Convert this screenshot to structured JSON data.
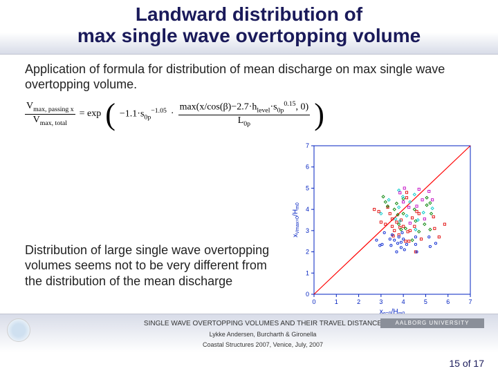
{
  "title_line1": "Landward distribution of",
  "title_line2": "max single wave overtopping volume",
  "subtitle": "Application of formula for distribution of mean discharge on max single wave overtopping volume.",
  "formula": {
    "lhs_num": "V",
    "lhs_num_sub": "max, passing x",
    "lhs_den": "V",
    "lhs_den_sub": "max, total",
    "eq": "= exp",
    "t1": "−1.1·s",
    "t1_sub": "0p",
    "t1_sup": "−1.05",
    "t2a": "max(x/cos(β)−2.7·h",
    "t2a_sub": "level",
    "t2b": "·s",
    "t2b_sub": "0p",
    "t2b_sup": "0.15",
    "t2c": ", 0)",
    "t3": "L",
    "t3_sub": "0p",
    "dot": "·"
  },
  "body_text": "Distribution of large single wave overtopping volumes seems not to be very different from the distribution of the mean discharge",
  "chart": {
    "type": "scatter",
    "xlim": [
      0,
      7
    ],
    "ylim": [
      0,
      7
    ],
    "ticks": [
      0,
      1,
      2,
      3,
      4,
      5,
      6,
      7
    ],
    "xlabel": "x",
    "xlabel_sub": "q=0",
    "xlabel_suffix": "/H",
    "xlabel_sub2": "m0",
    "ylabel": "x",
    "ylabel_sub": "Vmax=0",
    "ylabel_suffix": "/H",
    "ylabel_sub2": "m0",
    "line": {
      "x1": 0,
      "y1": 0,
      "x2": 7,
      "y2": 7,
      "color": "#ff0000",
      "width": 1.2
    },
    "axis_color": "#0020c0",
    "tick_color": "#0020c0",
    "label_color": "#0020c0",
    "background_color": "#ffffff",
    "marker_size": 3.2,
    "series": [
      {
        "color": "#e00000",
        "marker": "square",
        "points": [
          [
            2.7,
            4.0
          ],
          [
            2.9,
            3.9
          ],
          [
            3.0,
            3.4
          ],
          [
            3.2,
            3.3
          ],
          [
            3.3,
            4.1
          ],
          [
            3.4,
            3.8
          ],
          [
            3.5,
            3.2
          ],
          [
            3.5,
            3.55
          ],
          [
            3.55,
            2.75
          ],
          [
            3.6,
            3.0
          ],
          [
            3.7,
            3.4
          ],
          [
            3.8,
            2.8
          ],
          [
            3.85,
            3.15
          ],
          [
            3.9,
            3.5
          ],
          [
            4.0,
            3.2
          ],
          [
            4.1,
            2.5
          ],
          [
            4.15,
            4.55
          ],
          [
            4.15,
            4.8
          ],
          [
            4.2,
            2.95
          ],
          [
            4.25,
            2.5
          ],
          [
            4.3,
            3.0
          ],
          [
            4.4,
            3.6
          ],
          [
            4.5,
            3.2
          ],
          [
            4.55,
            2.0
          ],
          [
            4.6,
            3.9
          ],
          [
            4.7,
            3.8
          ],
          [
            4.8,
            2.6
          ],
          [
            5.35,
            3.65
          ],
          [
            5.4,
            3.1
          ],
          [
            5.6,
            2.7
          ],
          [
            5.85,
            3.3
          ]
        ]
      },
      {
        "color": "#008000",
        "marker": "diamond",
        "points": [
          [
            3.1,
            4.6
          ],
          [
            3.2,
            4.35
          ],
          [
            3.3,
            4.15
          ],
          [
            3.6,
            4.0
          ],
          [
            3.7,
            4.28
          ],
          [
            3.75,
            3.75
          ],
          [
            3.8,
            3.3
          ],
          [
            3.9,
            3.05
          ],
          [
            4.0,
            3.8
          ],
          [
            4.0,
            4.5
          ],
          [
            4.1,
            3.1
          ],
          [
            4.4,
            2.55
          ],
          [
            4.5,
            4.0
          ],
          [
            4.55,
            3.45
          ],
          [
            4.7,
            2.95
          ],
          [
            5.05,
            4.55
          ],
          [
            5.05,
            4.2
          ],
          [
            5.2,
            4.3
          ],
          [
            5.2,
            3.05
          ],
          [
            5.25,
            3.8
          ],
          [
            4.95,
            3.3
          ]
        ]
      },
      {
        "color": "#0020d0",
        "marker": "circle",
        "points": [
          [
            2.8,
            2.55
          ],
          [
            2.95,
            2.3
          ],
          [
            3.05,
            2.35
          ],
          [
            3.15,
            2.9
          ],
          [
            3.4,
            2.6
          ],
          [
            3.45,
            2.3
          ],
          [
            3.5,
            2.8
          ],
          [
            3.6,
            2.55
          ],
          [
            3.7,
            2.0
          ],
          [
            3.75,
            2.4
          ],
          [
            3.8,
            2.7
          ],
          [
            3.9,
            2.2
          ],
          [
            3.9,
            2.45
          ],
          [
            3.95,
            2.9
          ],
          [
            4.0,
            2.6
          ],
          [
            4.05,
            2.1
          ],
          [
            4.15,
            2.35
          ],
          [
            4.55,
            2.35
          ],
          [
            4.55,
            2.7
          ],
          [
            4.6,
            2.0
          ],
          [
            5.15,
            2.7
          ],
          [
            5.2,
            2.25
          ],
          [
            5.45,
            2.4
          ]
        ]
      },
      {
        "color": "#00c8c8",
        "marker": "diamond",
        "points": [
          [
            3.0,
            3.8
          ],
          [
            3.35,
            4.45
          ],
          [
            3.65,
            3.55
          ],
          [
            3.8,
            4.1
          ],
          [
            3.8,
            4.9
          ],
          [
            3.85,
            3.45
          ],
          [
            3.98,
            4.6
          ],
          [
            4.15,
            3.7
          ],
          [
            4.3,
            4.35
          ],
          [
            4.5,
            4.7
          ],
          [
            4.55,
            3.05
          ],
          [
            4.65,
            3.5
          ],
          [
            4.9,
            3.85
          ],
          [
            5.3,
            4.05
          ]
        ]
      },
      {
        "color": "#c000c0",
        "marker": "square",
        "points": [
          [
            3.85,
            4.78
          ],
          [
            4.0,
            4.35
          ],
          [
            4.05,
            5.0
          ],
          [
            4.25,
            4.1
          ],
          [
            4.3,
            3.35
          ],
          [
            4.6,
            4.15
          ],
          [
            4.7,
            4.95
          ],
          [
            4.85,
            4.45
          ],
          [
            4.95,
            3.55
          ],
          [
            5.15,
            4.85
          ],
          [
            5.3,
            4.45
          ]
        ]
      }
    ]
  },
  "footer": {
    "line1": "SINGLE WAVE OVERTOPPING VOLUMES AND THEIR TRAVEL DISTANCE",
    "line2": "Lykke Andersen, Burcharth & Gironella",
    "line3": "Coastal Structures 2007, Venice, July, 2007",
    "univ": "AALBORG UNIVERSITY"
  },
  "page": {
    "current": "15",
    "sep": " of ",
    "total": "17"
  }
}
